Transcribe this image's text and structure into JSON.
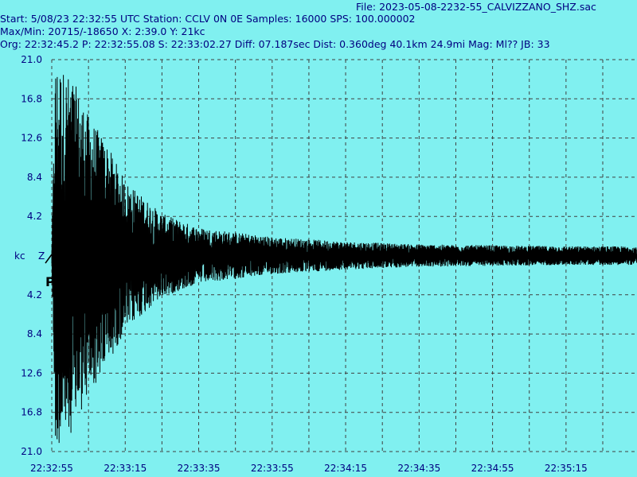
{
  "header": {
    "file": "File: 2023-05-08-2232-55_CALVIZZANO_SHZ.sac",
    "start": "Start: 5/08/23 22:32:55 UTC Station: CCLV 0N 0E Samples: 16000  SPS: 100.000002",
    "maxmin": "Max/Min: 20715/-18650 X: 2:39.0 Y: 21kc",
    "org": "Org: 22:32:45.2 P: 22:32:55.08 S: 22:33:02.27 Diff: 07.187sec Dist: 0.360deg 40.1km 24.9mi  Mag: Ml?? JB: 33"
  },
  "colors": {
    "background": "#80f0f0",
    "text": "#000080",
    "grid": "#404040",
    "trace": "#000000"
  },
  "markers": {
    "unit": "kc",
    "component": "Z",
    "p_pick": "P"
  },
  "chart_data": {
    "type": "line",
    "title": "",
    "xlabel": "",
    "ylabel": "kc",
    "ylim": [
      -21.0,
      21.0
    ],
    "y_ticks_top": [
      "21.0",
      "16.8",
      "12.6",
      "8.4",
      "4.2"
    ],
    "y_ticks_bottom": [
      "4.2",
      "8.4",
      "12.6",
      "16.8",
      "21.0"
    ],
    "x_ticks": [
      "22:32:55",
      "22:33:15",
      "22:33:35",
      "22:33:55",
      "22:34:15",
      "22:34:35",
      "22:34:55",
      "22:35:15"
    ],
    "grid": true,
    "series": [
      {
        "envelope_time_s": [
          0,
          1,
          3,
          6,
          10,
          15,
          20,
          30,
          40,
          60,
          80,
          100,
          120,
          140,
          159
        ],
        "envelope_kc": [
          1.0,
          20.7,
          20.0,
          18.7,
          15.0,
          12.0,
          8.0,
          4.5,
          3.0,
          2.0,
          1.5,
          1.2,
          1.1,
          1.0,
          1.0
        ]
      }
    ]
  }
}
